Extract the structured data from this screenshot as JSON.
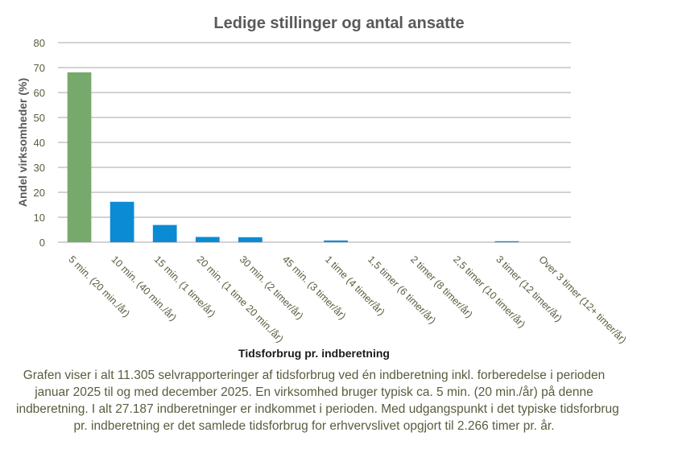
{
  "chart_data": {
    "type": "bar",
    "title": "Ledige stillinger og antal ansatte",
    "xlabel": "Tidsforbrug pr. indberetning",
    "ylabel": "Andel virksomheder  (%)",
    "ylim": [
      0,
      80
    ],
    "yticks": [
      0,
      10,
      20,
      30,
      40,
      50,
      60,
      70,
      80
    ],
    "grid": true,
    "categories": [
      "5 min. (20 min./år)",
      "10 min. (40 min./år)",
      "15 min. (1 time/år)",
      "20 min. (1 time 20 min./år)",
      "30 min. (2 timer/år)",
      "45 min. (3 timer/år)",
      "1 time (4 timer/år)",
      "1,5 timer (6 timer/år)",
      "2 timer (8 timer/år)",
      "2,5 timer (10 timer/år)",
      "3 timer (12 timer/år)",
      "Over 3 timer (12+ timer/år)"
    ],
    "values": [
      68.1,
      16.2,
      6.9,
      2.1,
      2.0,
      0.0,
      0.7,
      0.0,
      0.0,
      0.0,
      0.4,
      0.0
    ],
    "bar_colors": [
      "#77a96d",
      "#0b8bd3",
      "#0b8bd3",
      "#0b8bd3",
      "#0b8bd3",
      "#0b8bd3",
      "#0b8bd3",
      "#0b8bd3",
      "#0b8bd3",
      "#0b8bd3",
      "#0b8bd3",
      "#0b8bd3"
    ]
  },
  "caption_lines": [
    "Grafen viser i alt 11.305 selvrapporteringer af tidsforbrug ved én indberetning inkl. forberedelse i perioden",
    "januar 2025 til  og med december 2025. En virksomhed bruger typisk  ca. 5 min. (20 min./år) på denne",
    "indberetning. I alt 27.187 indberetninger er indkommet i perioden. Med udgangspunkt i det typiske tidsforbrug",
    "pr. indberetning er det samlede tidsforbrug  for erhvervslivet  opgjort til  2.266 timer pr. år."
  ],
  "colors": {
    "text": "#5b5b3f",
    "grid": "#a6a6a6",
    "title": "#595959"
  }
}
